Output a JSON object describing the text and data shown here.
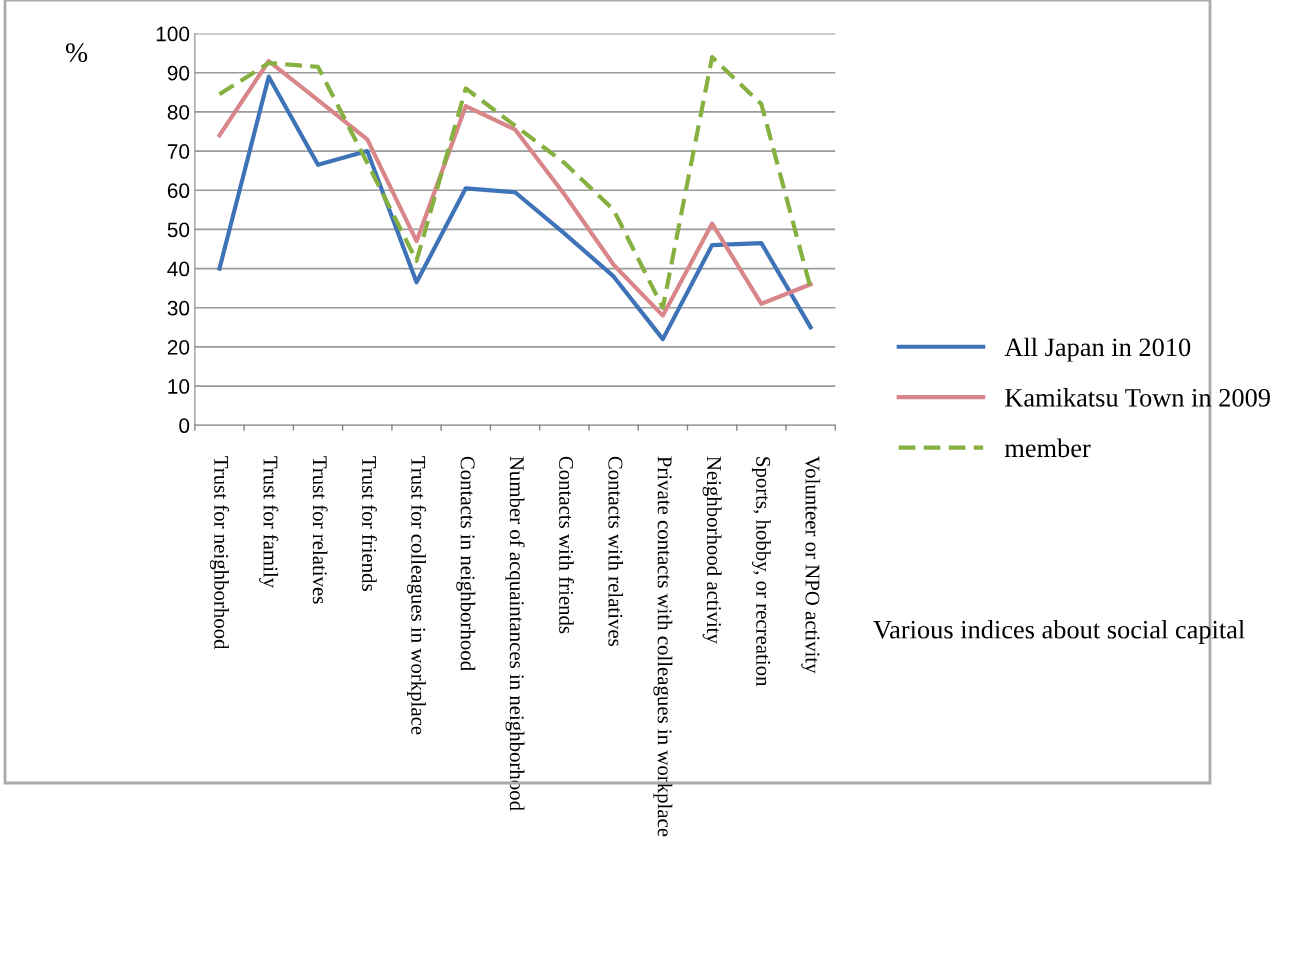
{
  "chart_data": {
    "type": "line",
    "ylabel": "%",
    "categories": [
      "Trust for neighborhood",
      "Trust for family",
      "Trust for relatives",
      "Trust for friends",
      "Trust for colleagues in workplace",
      "Contacts in neighborhood",
      "Number of acquaintances in neighborhood",
      "Contacts with friends",
      "Contacts with relatives",
      "Private contacts with colleagues in workplace",
      "Neighborhood activity",
      "Sports, hobby, or recreation",
      "Volunteer or NPO activity"
    ],
    "series": [
      {
        "name": "All Japan in 2010",
        "color": "#3f73b8",
        "line_style": "solid",
        "values": [
          40,
          89,
          66.5,
          70,
          36.5,
          60.5,
          59.5,
          49,
          38,
          22,
          46,
          46.5,
          25
        ]
      },
      {
        "name": "Kamikatsu Town in 2009",
        "color": "#d9868a",
        "line_style": "solid",
        "values": [
          74,
          93,
          83,
          73,
          47,
          81.5,
          75.5,
          59,
          41,
          28,
          51.5,
          31,
          36
        ]
      },
      {
        "name": "member",
        "color": "#86b040",
        "line_style": "dashed",
        "values": [
          84.5,
          92.5,
          91.5,
          67,
          42,
          86,
          76.5,
          67,
          55,
          30,
          94,
          82,
          35
        ]
      }
    ],
    "ylim": [
      0,
      100
    ],
    "yticks": [
      0,
      10,
      20,
      30,
      40,
      50,
      60,
      70,
      80,
      90,
      100
    ],
    "grid": "y",
    "legend": "right",
    "marker": "none",
    "annotations": [
      "Various indices about social capital"
    ]
  }
}
